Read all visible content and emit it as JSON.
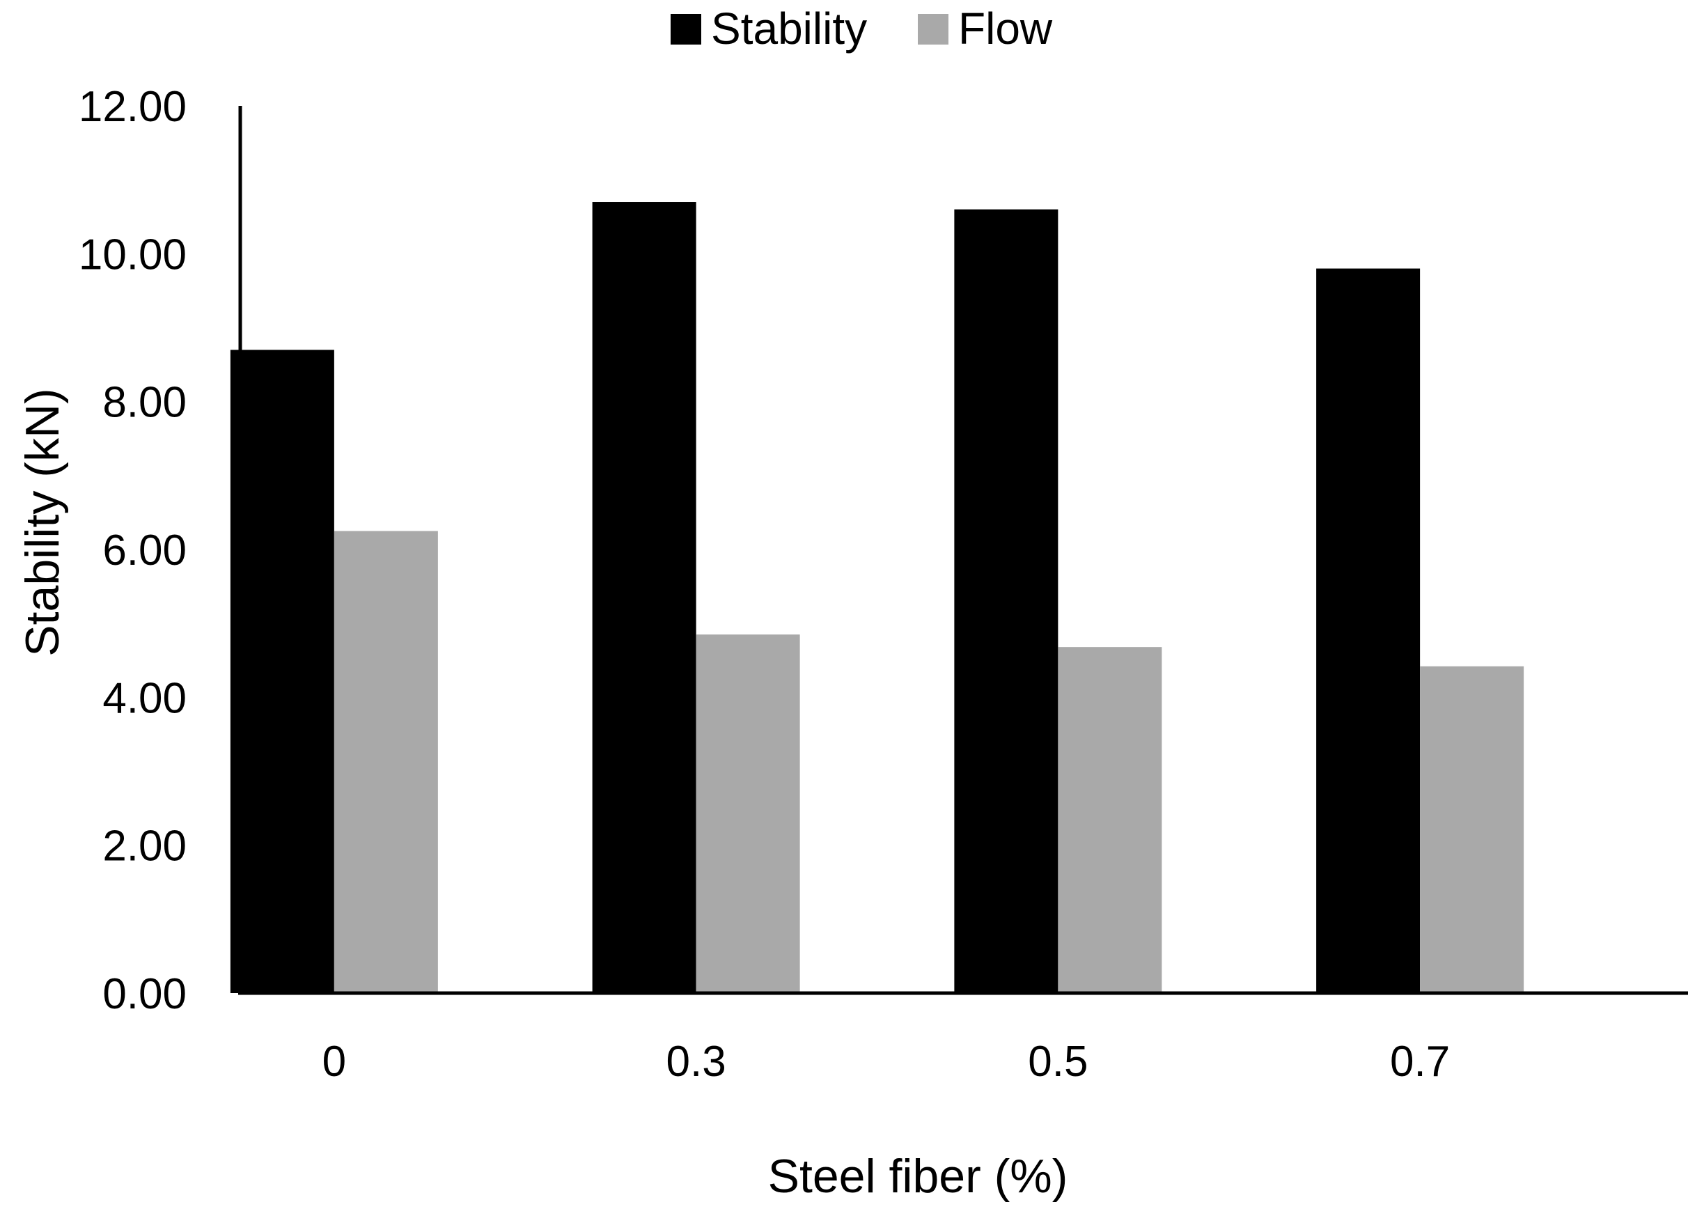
{
  "chart_data": {
    "type": "bar",
    "title": "",
    "xlabel": "Steel fiber (%)",
    "ylabel": "Stability (kN)",
    "categories": [
      "0",
      "0.3",
      "0.5",
      "0.7"
    ],
    "series": [
      {
        "name": "Stability",
        "color": "#000000",
        "values": [
          8.7,
          10.7,
          10.6,
          9.8
        ]
      },
      {
        "name": "Flow",
        "color": "#a9a9a9",
        "values": [
          6.25,
          4.85,
          4.68,
          4.42
        ]
      }
    ],
    "ylim": [
      0,
      12
    ],
    "yticks": [
      "0.00",
      "2.00",
      "4.00",
      "6.00",
      "8.00",
      "10.00",
      "12.00"
    ],
    "grid": false,
    "legend_position": "top-center"
  }
}
